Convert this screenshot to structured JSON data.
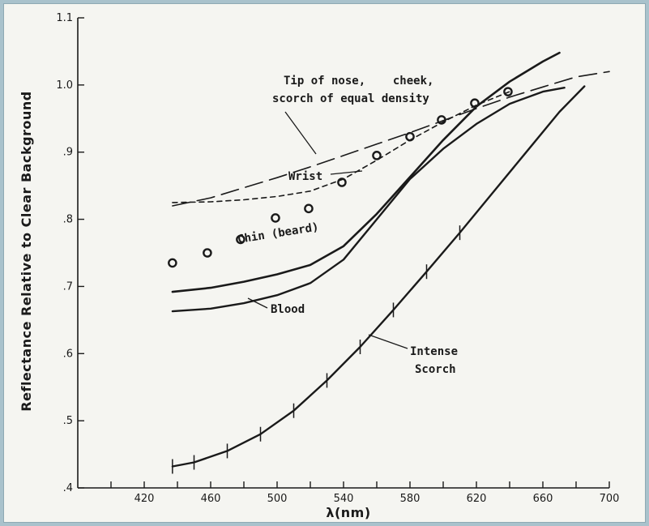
{
  "chart_data": {
    "type": "line",
    "xlabel": "λ(nm)",
    "ylabel": "Reflectance Relative to Clear Background",
    "xlim": [
      380,
      700
    ],
    "ylim": [
      0.4,
      1.1
    ],
    "x_ticks": [
      420,
      460,
      500,
      540,
      580,
      620,
      660,
      700
    ],
    "y_ticks": [
      ".4",
      ".5",
      ".6",
      ".7",
      ".8",
      ".9",
      "1.0",
      "1.1"
    ],
    "y_tick_values": [
      0.4,
      0.5,
      0.6,
      0.7,
      0.8,
      0.9,
      1.0,
      1.1
    ],
    "grid": false,
    "legend": "none",
    "series": [
      {
        "key": "tip",
        "style": "long-dash",
        "x": [
          437,
          460,
          480,
          500,
          520,
          540,
          560,
          580,
          600,
          620,
          640,
          660,
          680,
          700
        ],
        "y": [
          0.82,
          0.832,
          0.847,
          0.862,
          0.878,
          0.895,
          0.912,
          0.929,
          0.947,
          0.965,
          0.982,
          0.997,
          1.012,
          1.02
        ]
      },
      {
        "key": "wrist",
        "style": "short-dash",
        "x": [
          437,
          460,
          480,
          500,
          520,
          540,
          560,
          580,
          600,
          620,
          640
        ],
        "y": [
          0.825,
          0.826,
          0.829,
          0.834,
          0.842,
          0.86,
          0.888,
          0.918,
          0.945,
          0.97,
          0.99
        ]
      },
      {
        "key": "chin",
        "style": "markers",
        "x": [
          437,
          458,
          478,
          499,
          519,
          539,
          560,
          580,
          599,
          619,
          639
        ],
        "y": [
          0.735,
          0.75,
          0.77,
          0.802,
          0.816,
          0.855,
          0.895,
          0.923,
          0.948,
          0.973,
          0.99
        ]
      },
      {
        "key": "blood",
        "style": "solid",
        "x": [
          437,
          460,
          480,
          500,
          520,
          540,
          560,
          580,
          600,
          620,
          640,
          660,
          673
        ],
        "y": [
          0.663,
          0.667,
          0.675,
          0.687,
          0.705,
          0.74,
          0.8,
          0.86,
          0.905,
          0.942,
          0.972,
          0.99,
          0.996
        ]
      },
      {
        "key": "chin_curve",
        "style": "solid",
        "x": [
          437,
          460,
          480,
          500,
          520,
          540,
          560,
          580,
          600,
          620,
          640,
          660,
          670
        ],
        "y": [
          0.692,
          0.698,
          0.707,
          0.718,
          0.732,
          0.76,
          0.808,
          0.863,
          0.918,
          0.968,
          1.005,
          1.035,
          1.048
        ]
      },
      {
        "key": "scorch",
        "style": "solid-ticked",
        "x": [
          437,
          450,
          470,
          490,
          510,
          530,
          550,
          570,
          590,
          610,
          630,
          650,
          670,
          685
        ],
        "y": [
          0.432,
          0.438,
          0.455,
          0.48,
          0.515,
          0.56,
          0.61,
          0.665,
          0.722,
          0.78,
          0.84,
          0.9,
          0.96,
          0.998
        ]
      }
    ],
    "annotations": {
      "tip_line1": "Tip of nose,    cheek,",
      "tip_line2": "scorch of equal density",
      "wrist": "Wrist",
      "chin": "Chin (beard)",
      "blood": "Blood",
      "scorch_line1": "Intense",
      "scorch_line2": "Scorch"
    }
  }
}
